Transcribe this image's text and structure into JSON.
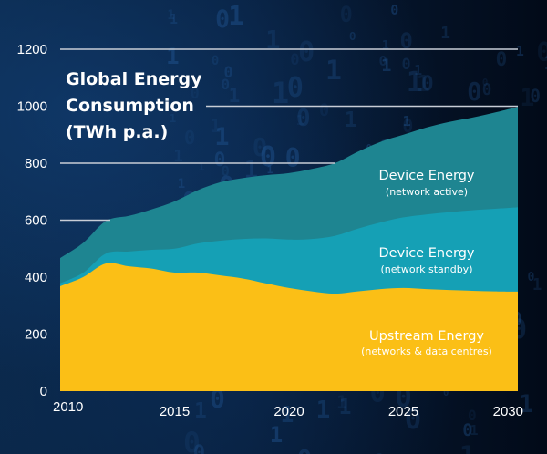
{
  "chart_data": {
    "type": "area",
    "stacked": true,
    "title": "Global Energy Consumption (TWh p.a.)",
    "title_lines": [
      "Global Energy",
      "Consumption",
      "(TWh p.a.)"
    ],
    "xlabel": "",
    "ylabel": "TWh p.a.",
    "x": [
      2010,
      2011,
      2012,
      2013,
      2014,
      2015,
      2016,
      2017,
      2018,
      2019,
      2020,
      2021,
      2022,
      2023,
      2024,
      2025,
      2026,
      2027,
      2028,
      2029,
      2030
    ],
    "xlim": [
      2010,
      2030
    ],
    "ylim": [
      0,
      1200
    ],
    "x_ticks": [
      "2010",
      "2015",
      "2020",
      "2025",
      "2030"
    ],
    "x_tick_values": [
      2010,
      2015,
      2020,
      2025,
      2030
    ],
    "y_ticks": [
      "0",
      "200",
      "400",
      "600",
      "800",
      "1000",
      "1200"
    ],
    "y_tick_values": [
      0,
      200,
      400,
      600,
      800,
      1000,
      1200
    ],
    "grid": true,
    "series": [
      {
        "name": "Upstream Energy",
        "subtitle": "(networks & data centres)",
        "color": "#fbbf16",
        "values": [
          368,
          400,
          448,
          438,
          430,
          416,
          416,
          406,
          395,
          378,
          362,
          350,
          342,
          350,
          358,
          362,
          358,
          355,
          352,
          350,
          349
        ]
      },
      {
        "name": "Device Energy",
        "subtitle": "(network standby)",
        "color": "#15a0b5",
        "values": [
          10,
          15,
          35,
          52,
          66,
          84,
          102,
          122,
          139,
          158,
          170,
          184,
          203,
          220,
          234,
          248,
          262,
          273,
          283,
          290,
          296
        ]
      },
      {
        "name": "Device Energy",
        "subtitle": "(network active)",
        "color": "#1e8591",
        "values": [
          89,
          105,
          114,
          125,
          142,
          166,
          187,
          205,
          214,
          222,
          233,
          246,
          255,
          270,
          283,
          290,
          305,
          317,
          325,
          338,
          353
        ]
      }
    ]
  }
}
